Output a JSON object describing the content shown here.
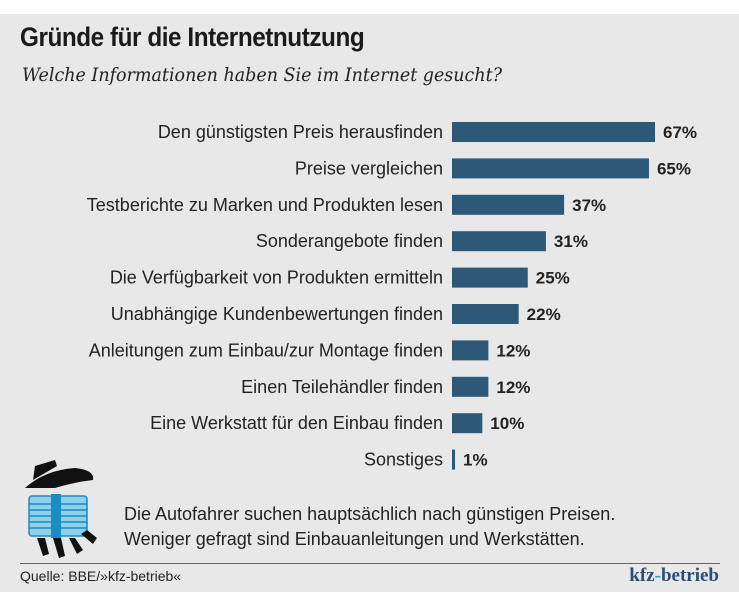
{
  "title": "Gründe für die Internetnutzung",
  "subtitle": "Welche Informationen haben Sie im Internet gesucht?",
  "note_line1": "Die Autofahrer suchen hauptsächlich nach günstigen Preisen.",
  "note_line2": "Weniger gefragt sind Einbauanleitungen und Werkstätten.",
  "source": "Quelle: BBE/»kfz-betrieb«",
  "brand": {
    "part1": "kfz",
    "dash": "-",
    "part2": "betrieb"
  },
  "colors": {
    "bar": "#2d5877",
    "background": "#e8e8e8",
    "brand": "#2a4e78"
  },
  "chart_data": {
    "type": "bar",
    "orientation": "horizontal",
    "categories": [
      "Den günstigsten Preis herausfinden",
      "Preise vergleichen",
      "Testberichte zu Marken und Produkten lesen",
      "Sonderangebote finden",
      "Die Verfügbarkeit von Produkten ermitteln",
      "Unabhängige Kundenbewertungen finden",
      "Anleitungen zum Einbau/zur Montage finden",
      "Einen Teilehändler finden",
      "Eine Werkstatt für den Einbau finden",
      "Sonstiges"
    ],
    "values": [
      67,
      65,
      37,
      31,
      25,
      22,
      12,
      12,
      10,
      1
    ],
    "value_labels": [
      "67%",
      "65%",
      "37%",
      "31%",
      "25%",
      "22%",
      "12%",
      "12%",
      "10%",
      "1%"
    ],
    "unit": "%"
  }
}
